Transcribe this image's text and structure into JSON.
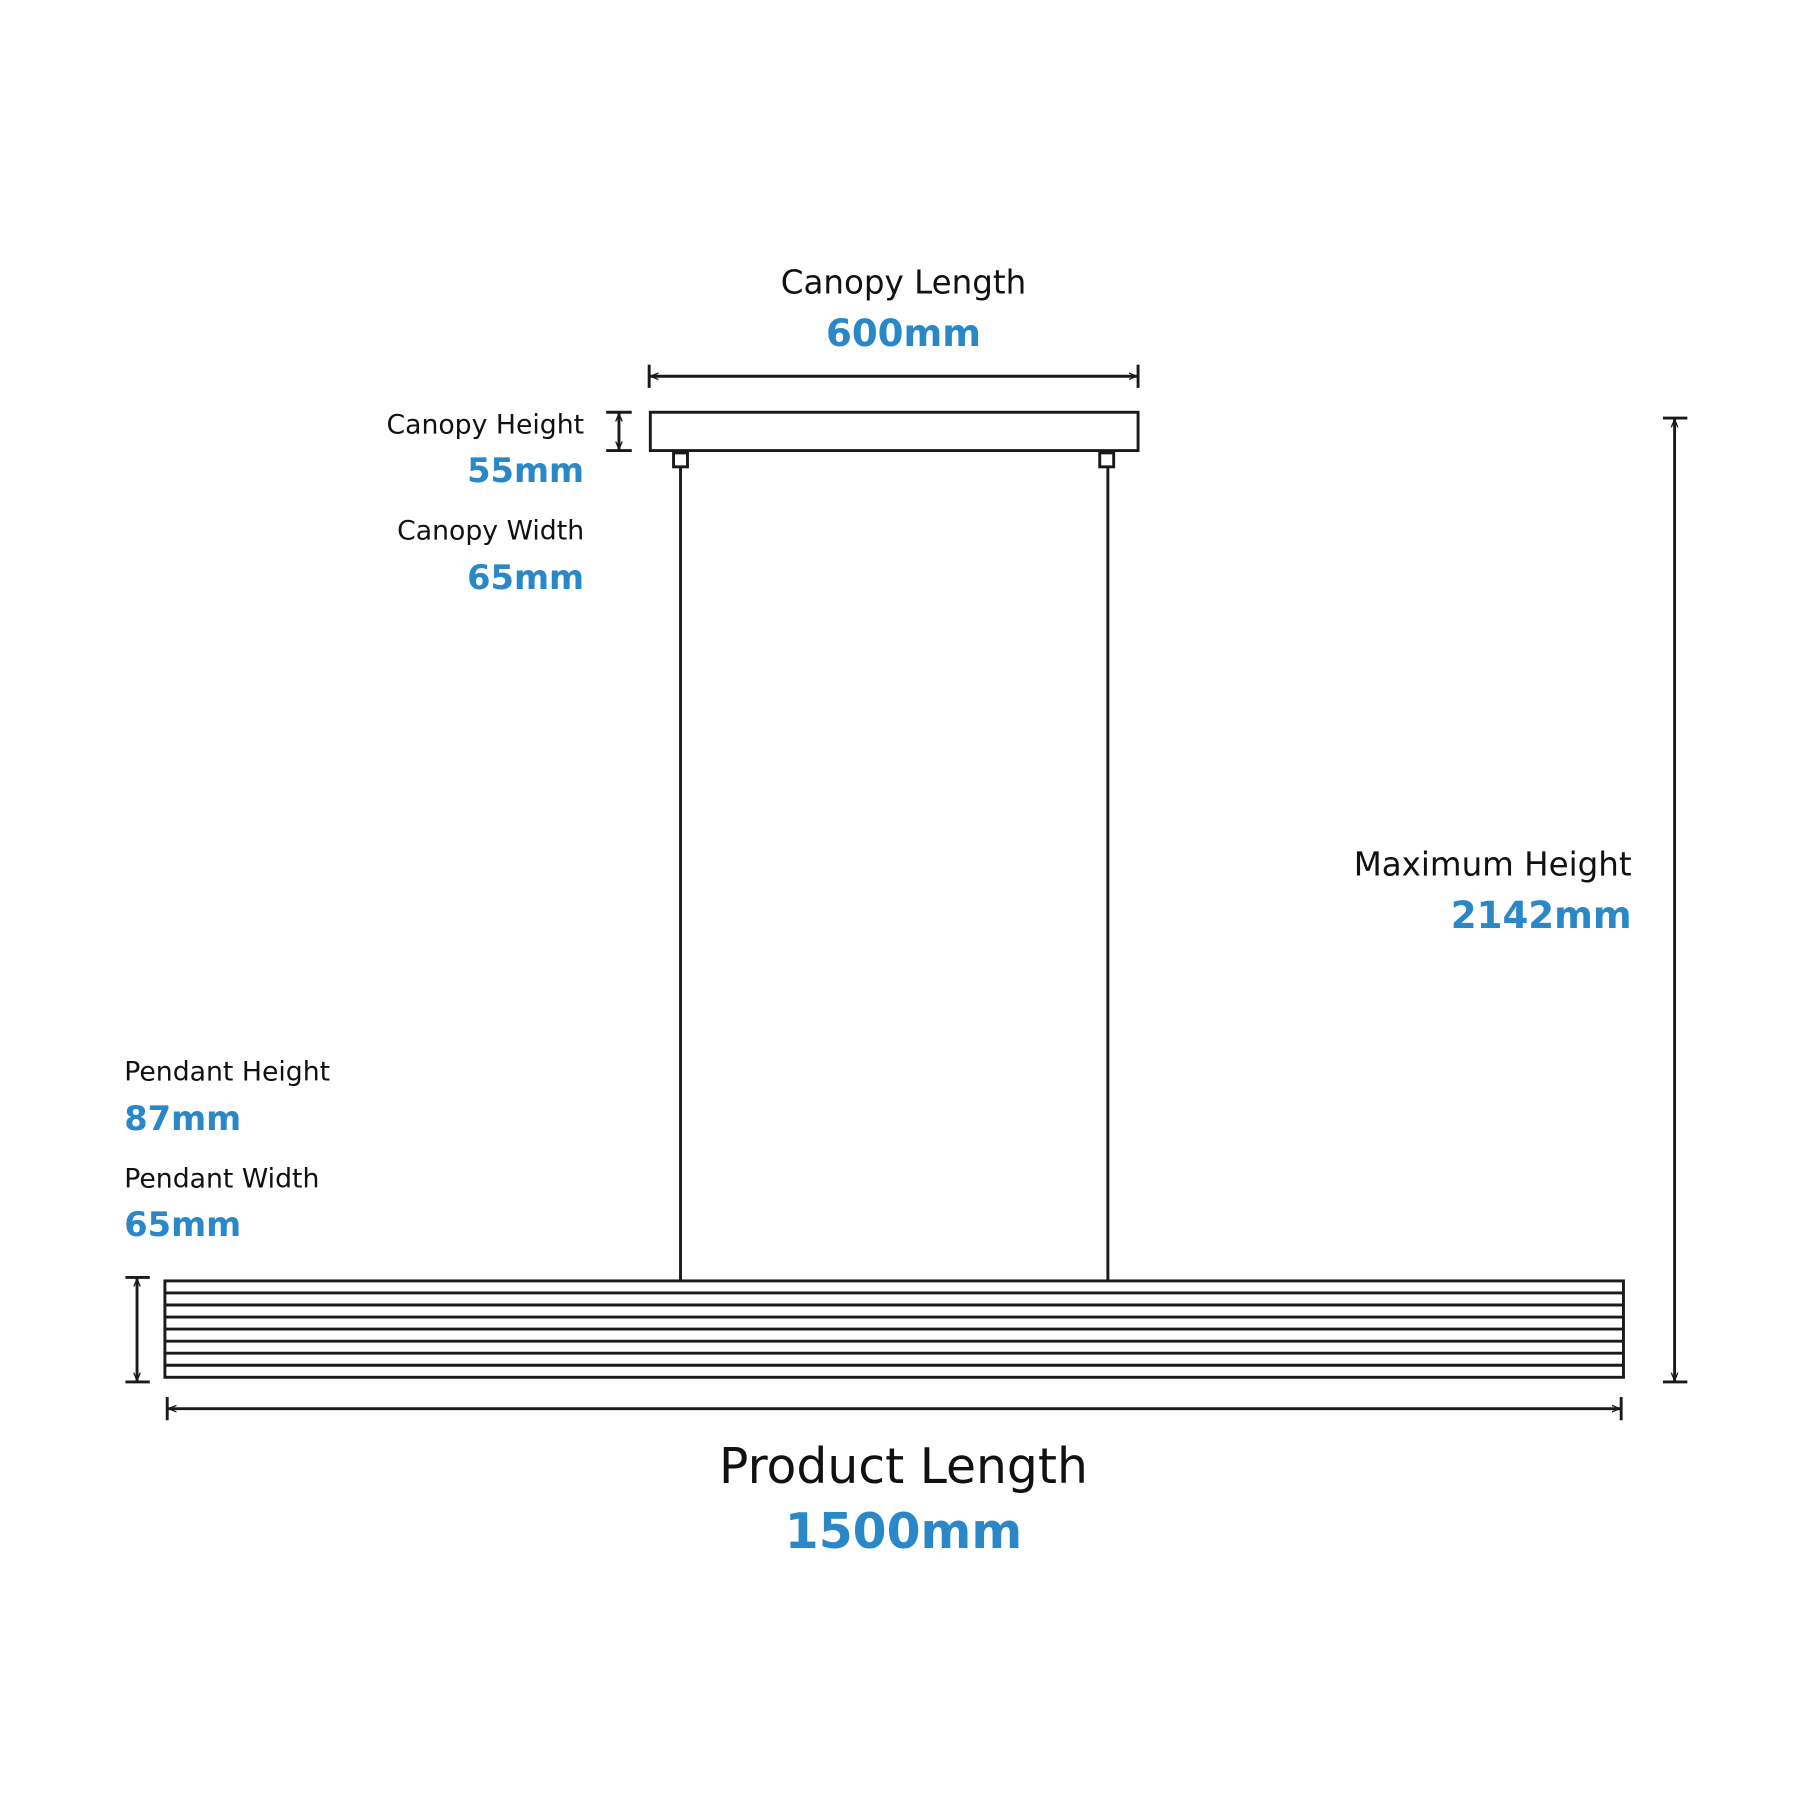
{
  "canopy_length": {
    "label": "Canopy Length",
    "value": "600mm"
  },
  "canopy_height": {
    "label": "Canopy Height",
    "value": "55mm"
  },
  "canopy_width": {
    "label": "Canopy Width",
    "value": "65mm"
  },
  "maximum_height": {
    "label": "Maximum Height",
    "value": "2142mm"
  },
  "pendant_height": {
    "label": "Pendant Height",
    "value": "87mm"
  },
  "pendant_width": {
    "label": "Pendant Width",
    "value": "65mm"
  },
  "product_length": {
    "label": "Product Length",
    "value": "1500mm"
  }
}
